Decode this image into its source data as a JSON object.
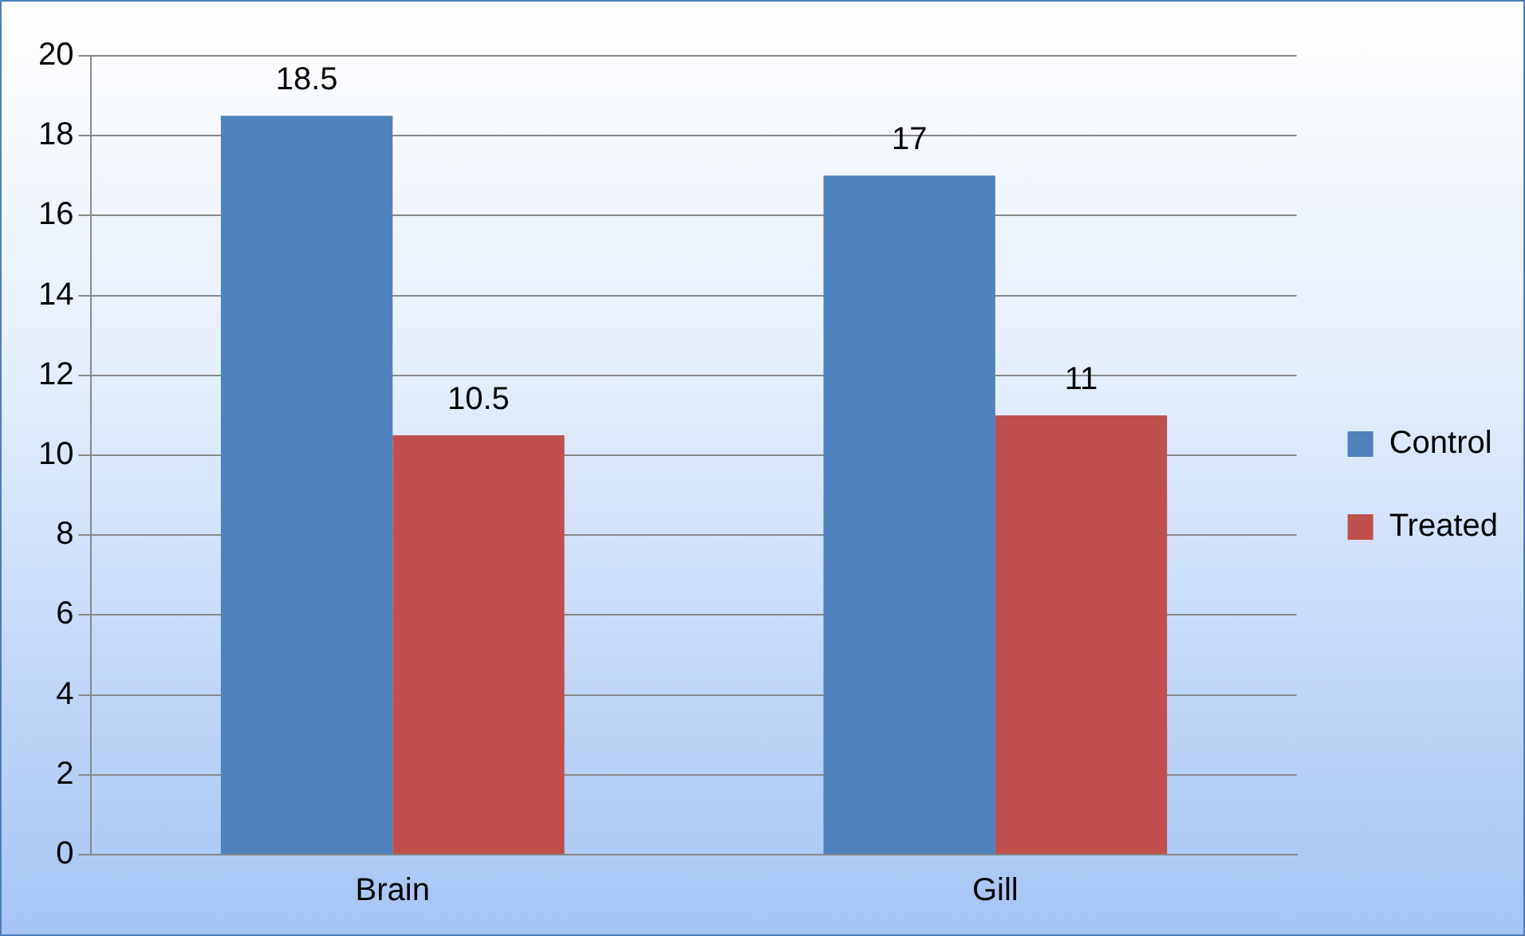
{
  "chart_data": {
    "type": "bar",
    "categories": [
      "Brain",
      "Gill"
    ],
    "series": [
      {
        "name": "Control",
        "color": "#4f81bd",
        "values": [
          18.5,
          17
        ]
      },
      {
        "name": "Treated",
        "color": "#c0504d",
        "values": [
          10.5,
          11
        ]
      }
    ],
    "ylim": [
      0,
      20
    ],
    "yticks": [
      0,
      2,
      4,
      6,
      8,
      10,
      12,
      14,
      16,
      18,
      20
    ],
    "grid": "y",
    "legend": "right",
    "data_labels": true
  }
}
